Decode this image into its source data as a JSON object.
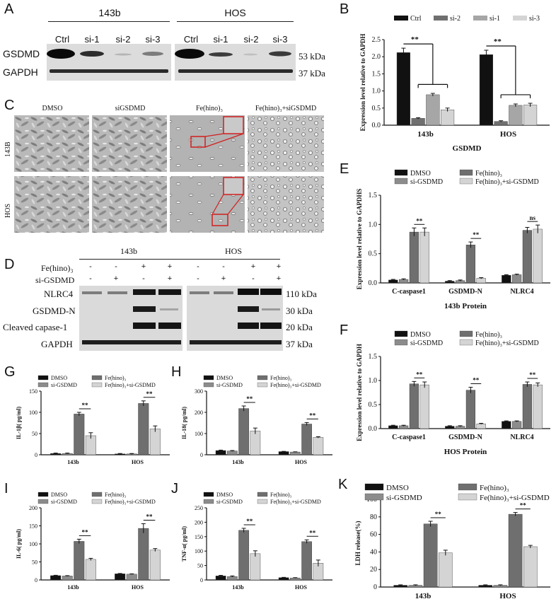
{
  "panels": {
    "a": "A",
    "b": "B",
    "c": "C",
    "d": "D",
    "e": "E",
    "f": "F",
    "g": "G",
    "h": "H",
    "i": "I",
    "j": "J",
    "k": "K"
  },
  "panelA": {
    "group1": "143b",
    "group2": "HOS",
    "lanes1": [
      "Ctrl",
      "si-1",
      "si-2",
      "si-3"
    ],
    "lanes2": [
      "Ctrl",
      "si-1",
      "si-2",
      "si-3"
    ],
    "rows": [
      "GSDMD",
      "GAPDH"
    ],
    "sizes": [
      "53 kDa",
      "37 kDa"
    ]
  },
  "panelC": {
    "cols": [
      "DMSO",
      "siGSDMD",
      "Fe(hino)₃",
      "Fe(hino)₃+siGSDMD"
    ],
    "rows": [
      "143B",
      "HOS"
    ]
  },
  "panelD": {
    "group1": "143b",
    "group2": "HOS",
    "row1_label": "Fe(hino)₃",
    "row2_label": "si-GSDMD",
    "row1_signs": [
      "-",
      "-",
      "+",
      "+",
      "-",
      "-",
      "+",
      "+"
    ],
    "row2_signs": [
      "-",
      "+",
      "-",
      "+",
      "-",
      "+",
      "-",
      "+"
    ],
    "rows": [
      "NLRC4",
      "GSDMD-N",
      "Cleaved capase-1",
      "GAPDH"
    ],
    "sizes": [
      "110 kDa",
      "30 kDa",
      "20 kDa",
      "37 kDa"
    ]
  },
  "chart_data": [
    {
      "id": "B",
      "type": "bar",
      "categories": [
        "143b",
        "HOS"
      ],
      "series": [
        {
          "name": "Ctrl",
          "values": [
            2.12,
            2.06
          ],
          "err": [
            0.13,
            0.13
          ],
          "color": "#111111"
        },
        {
          "name": "si-2",
          "values": [
            0.2,
            0.11
          ],
          "err": [
            0.02,
            0.02
          ],
          "color": "#6f6f6f"
        },
        {
          "name": "si-1",
          "values": [
            0.89,
            0.58
          ],
          "err": [
            0.04,
            0.04
          ],
          "color": "#a6a6a6"
        },
        {
          "name": "si-3",
          "values": [
            0.45,
            0.59
          ],
          "err": [
            0.05,
            0.05
          ],
          "color": "#d4d4d4"
        }
      ],
      "xlabel": "GSDMD",
      "ylabel": "Expression level relative to GAPDH",
      "ylim": [
        0,
        2.5
      ],
      "yticks": [
        "0.0",
        "0.5",
        "1.0",
        "1.5",
        "2.0",
        "2.5"
      ],
      "sig": "**"
    },
    {
      "id": "E",
      "type": "bar",
      "categories": [
        "C-caspase1",
        "GSDMD-N",
        "NLRC4"
      ],
      "series": [
        {
          "name": "DMSO",
          "values": [
            0.05,
            0.03,
            0.13
          ],
          "err": [
            0.01,
            0.01,
            0.01
          ],
          "color": "#111111"
        },
        {
          "name": "si-GSDMD",
          "values": [
            0.06,
            0.04,
            0.14
          ],
          "err": [
            0.01,
            0.01,
            0.01
          ],
          "color": "#8c8c8c"
        },
        {
          "name": "Fe(hino)₃",
          "values": [
            0.87,
            0.65,
            0.9
          ],
          "err": [
            0.07,
            0.05,
            0.05
          ],
          "color": "#6f6f6f"
        },
        {
          "name": "Fe(hino)₃+si-GSDMD",
          "values": [
            0.87,
            0.08,
            0.92
          ],
          "err": [
            0.07,
            0.01,
            0.07
          ],
          "color": "#d4d4d4"
        }
      ],
      "xlabel": "143b Protein",
      "ylabel": "Expression level relative to GAPDHS",
      "ylim": [
        0,
        1.5
      ],
      "yticks": [
        "0.0",
        "0.5",
        "1.0",
        "1.5"
      ],
      "annotations": [
        "**",
        "**",
        "ns"
      ]
    },
    {
      "id": "F",
      "type": "bar",
      "categories": [
        "C-caspase1",
        "GSDMD-N",
        "NLRC4"
      ],
      "series": [
        {
          "name": "DMSO",
          "values": [
            0.06,
            0.05,
            0.15
          ],
          "err": [
            0.01,
            0.01,
            0.01
          ],
          "color": "#111111"
        },
        {
          "name": "si-GSDMD",
          "values": [
            0.06,
            0.05,
            0.15
          ],
          "err": [
            0.01,
            0.01,
            0.01
          ],
          "color": "#8c8c8c"
        },
        {
          "name": "Fe(hino)₃",
          "values": [
            0.93,
            0.8,
            0.92
          ],
          "err": [
            0.05,
            0.06,
            0.05
          ],
          "color": "#6f6f6f"
        },
        {
          "name": "Fe(hino)₃+si-GSDMD",
          "values": [
            0.91,
            0.1,
            0.91
          ],
          "err": [
            0.06,
            0.01,
            0.04
          ],
          "color": "#d4d4d4"
        }
      ],
      "xlabel": "HOS Protein",
      "ylabel": "Expression level relative to GAPDH",
      "ylim": [
        0,
        1.5
      ],
      "yticks": [
        "0.0",
        "0.5",
        "1.0",
        "1.5"
      ],
      "annotations": [
        "**",
        "**",
        "**"
      ]
    },
    {
      "id": "G",
      "type": "bar",
      "categories": [
        "143b",
        "HOS"
      ],
      "series": [
        {
          "name": "DMSO",
          "values": [
            3,
            2
          ],
          "err": [
            1,
            1
          ],
          "color": "#111111"
        },
        {
          "name": "si-GSDMD",
          "values": [
            3,
            2
          ],
          "err": [
            1,
            1
          ],
          "color": "#8c8c8c"
        },
        {
          "name": "Fe(hino)₃",
          "values": [
            96,
            121
          ],
          "err": [
            4,
            6
          ],
          "color": "#6f6f6f"
        },
        {
          "name": "Fe(hino)₃+si-GSDMD",
          "values": [
            45,
            61
          ],
          "err": [
            7,
            7
          ],
          "color": "#d4d4d4"
        }
      ],
      "ylabel": "IL-1β( pg/ml)",
      "ylim": [
        0,
        150
      ],
      "yticks": [
        "0",
        "50",
        "100",
        "150"
      ],
      "annotations": [
        "**",
        "**"
      ]
    },
    {
      "id": "H",
      "type": "bar",
      "categories": [
        "143b",
        "HOS"
      ],
      "series": [
        {
          "name": "DMSO",
          "values": [
            20,
            15
          ],
          "err": [
            2,
            1
          ],
          "color": "#111111"
        },
        {
          "name": "si-GSDMD",
          "values": [
            18,
            13
          ],
          "err": [
            2,
            1
          ],
          "color": "#8c8c8c"
        },
        {
          "name": "Fe(hino)₃",
          "values": [
            218,
            145
          ],
          "err": [
            12,
            7
          ],
          "color": "#6f6f6f"
        },
        {
          "name": "Fe(hino)₃+si-GSDMD",
          "values": [
            112,
            82
          ],
          "err": [
            14,
            3
          ],
          "color": "#d4d4d4"
        }
      ],
      "ylabel": "IL-18( pg/ml)",
      "ylim": [
        0,
        300
      ],
      "yticks": [
        "0",
        "100",
        "200",
        "300"
      ],
      "annotations": [
        "**",
        "**"
      ]
    },
    {
      "id": "I",
      "type": "bar",
      "categories": [
        "143b",
        "HOS"
      ],
      "series": [
        {
          "name": "DMSO",
          "values": [
            12,
            17
          ],
          "err": [
            1,
            1
          ],
          "color": "#111111"
        },
        {
          "name": "si-GSDMD",
          "values": [
            11,
            16
          ],
          "err": [
            1,
            1
          ],
          "color": "#8c8c8c"
        },
        {
          "name": "Fe(hino)₃",
          "values": [
            107,
            143
          ],
          "err": [
            6,
            13
          ],
          "color": "#6f6f6f"
        },
        {
          "name": "Fe(hino)₃+si-GSDMD",
          "values": [
            57,
            83
          ],
          "err": [
            3,
            4
          ],
          "color": "#d4d4d4"
        }
      ],
      "ylabel": "IL-6( pg/ml)",
      "ylim": [
        0,
        200
      ],
      "yticks": [
        "0",
        "50",
        "100",
        "150",
        "200"
      ],
      "annotations": [
        "**",
        "**"
      ]
    },
    {
      "id": "J",
      "type": "bar",
      "categories": [
        "143b",
        "HOS"
      ],
      "series": [
        {
          "name": "DMSO",
          "values": [
            14,
            8
          ],
          "err": [
            2,
            1
          ],
          "color": "#111111"
        },
        {
          "name": "si-GSDMD",
          "values": [
            12,
            7
          ],
          "err": [
            2,
            1
          ],
          "color": "#8c8c8c"
        },
        {
          "name": "Fe(hino)₃",
          "values": [
            172,
            133
          ],
          "err": [
            7,
            6
          ],
          "color": "#6f6f6f"
        },
        {
          "name": "Fe(hino)₃+si-GSDMD",
          "values": [
            91,
            58
          ],
          "err": [
            10,
            11
          ],
          "color": "#d4d4d4"
        }
      ],
      "ylabel": "TNF-α( pg/ml)",
      "ylim": [
        0,
        250
      ],
      "yticks": [
        "0",
        "50",
        "100",
        "150",
        "200",
        "250"
      ],
      "annotations": [
        "**",
        "**"
      ]
    },
    {
      "id": "K",
      "type": "bar",
      "categories": [
        "143b",
        "HOS"
      ],
      "series": [
        {
          "name": "DMSO",
          "values": [
            2,
            2
          ],
          "err": [
            0.5,
            0.5
          ],
          "color": "#111111"
        },
        {
          "name": "si-GSDMD",
          "values": [
            2,
            2
          ],
          "err": [
            0.5,
            0.5
          ],
          "color": "#8c8c8c"
        },
        {
          "name": "Fe(hino)₃",
          "values": [
            72,
            83
          ],
          "err": [
            3,
            2
          ],
          "color": "#6f6f6f"
        },
        {
          "name": "Fe(hino)₃+si-GSDMD",
          "values": [
            39,
            46
          ],
          "err": [
            3,
            1.5
          ],
          "color": "#d4d4d4"
        }
      ],
      "ylabel": "LDH  release(%)",
      "ylim": [
        0,
        100
      ],
      "yticks": [
        "0",
        "20",
        "40",
        "60",
        "80",
        "100"
      ],
      "annotations": [
        "**",
        "**"
      ]
    }
  ]
}
